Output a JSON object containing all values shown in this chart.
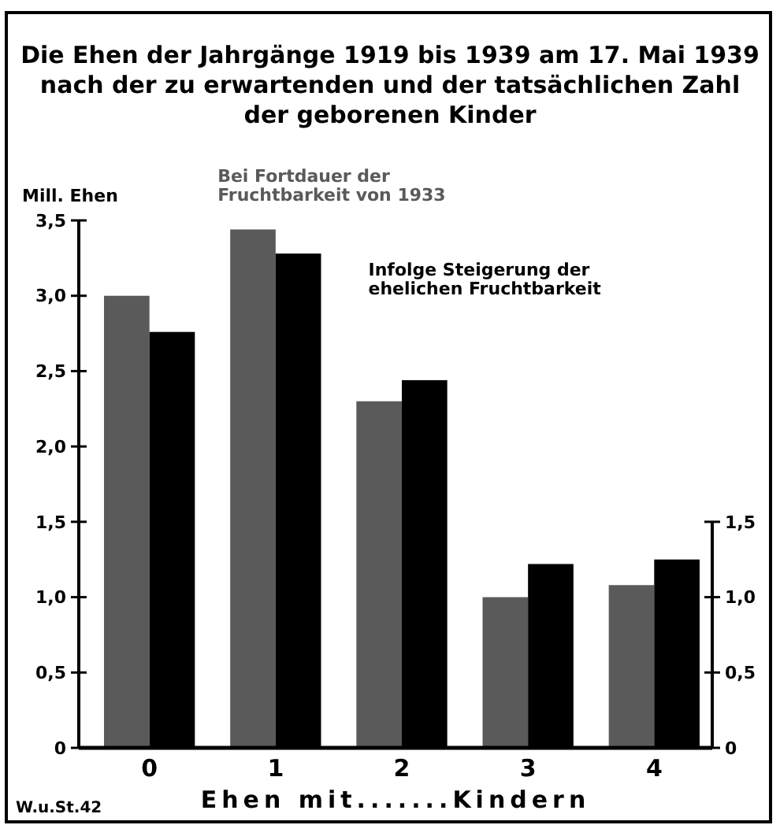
{
  "chart_data": {
    "type": "bar",
    "title": "Die Ehen der Jahrgänge 1919 bis 1939 am 17. Mai 1939\nnach der zu erwartenden und der tatsächlichen Zahl\nder geborenen Kinder",
    "ylabel": "Mill. Ehen",
    "xlabel": "Ehen mit.......Kindern",
    "categories": [
      "0",
      "1",
      "2",
      "3",
      "4"
    ],
    "series": [
      {
        "name": "Bei Fortdauer der\nFruchtbarkeit von 1933",
        "color": "#5a5a5a",
        "values": [
          3.0,
          3.44,
          2.3,
          1.0,
          1.08
        ]
      },
      {
        "name": "Infolge Steigerung der\nehelichen Fruchtbarkeit",
        "color": "#000000",
        "values": [
          2.76,
          3.28,
          2.44,
          1.22,
          1.25
        ]
      }
    ],
    "ylim": [
      0,
      3.5
    ],
    "yticks": [
      0,
      {
        "value": 0.5,
        "label": "0,5"
      },
      {
        "value": 1,
        "label": "1,0"
      },
      {
        "value": 1.5,
        "label": "1,5"
      },
      {
        "value": 2,
        "label": "2,0"
      },
      {
        "value": 2.5,
        "label": "2,5"
      },
      {
        "value": 3,
        "label": "3,0"
      },
      {
        "value": 3.5,
        "label": "3,5"
      }
    ],
    "y2lim": [
      0,
      1.5
    ],
    "y2ticks": [
      0,
      {
        "value": 0.5,
        "label": "0,5"
      },
      {
        "value": 1,
        "label": "1,0"
      },
      {
        "value": 1.5,
        "label": "1,5"
      }
    ],
    "legend": false,
    "grid": false,
    "annotations": [
      "W.u.St.42"
    ]
  }
}
